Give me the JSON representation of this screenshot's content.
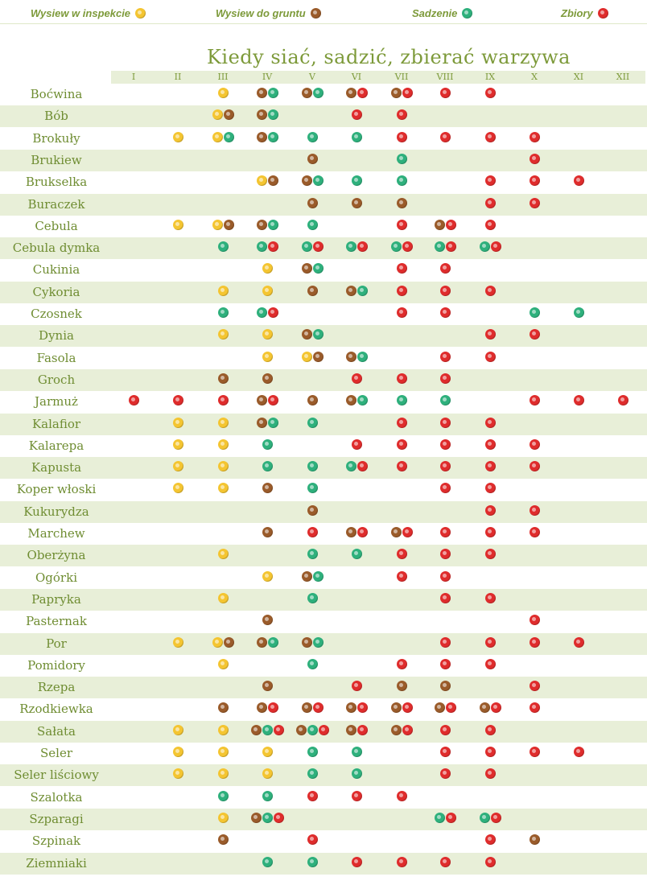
{
  "legend": {
    "indoor_sowing": "Wysiew w inspekcie",
    "direct_sowing": "Wysiew do gruntu",
    "planting": "Sadzenie",
    "harvest": "Zbiory"
  },
  "colors": {
    "indoor_sowing": "#f4c531",
    "direct_sowing": "#9a5b2a",
    "planting": "#2eb07c",
    "harvest": "#df2c2c",
    "text": "#7d9a3a",
    "row_shade": "#e8efd8"
  },
  "chart_data": {
    "type": "table",
    "title": "Kiedy siać, sadzić, zbierać warzywa",
    "months": [
      "I",
      "II",
      "III",
      "IV",
      "V",
      "VI",
      "VII",
      "VIII",
      "IX",
      "X",
      "XI",
      "XII"
    ],
    "code_key": {
      "s": "Wysiew w inspekcie",
      "d": "Wysiew do gruntu",
      "p": "Sadzenie",
      "h": "Zbiory"
    },
    "rows": [
      {
        "name": "Boćwina",
        "cells": [
          "",
          "",
          "s",
          "dp",
          "dp",
          "dh",
          "dh",
          "h",
          "h",
          "",
          "",
          ""
        ]
      },
      {
        "name": "Bób",
        "cells": [
          "",
          "",
          "sd",
          "dp",
          "",
          "h",
          "h",
          "",
          "",
          "",
          "",
          ""
        ]
      },
      {
        "name": "Brokuły",
        "cells": [
          "",
          "s",
          "sp",
          "dp",
          "p",
          "p",
          "h",
          "h",
          "h",
          "h",
          "",
          ""
        ]
      },
      {
        "name": "Brukiew",
        "cells": [
          "",
          "",
          "",
          "",
          "d",
          "",
          "p",
          "",
          "",
          "h",
          "",
          ""
        ]
      },
      {
        "name": "Brukselka",
        "cells": [
          "",
          "",
          "",
          "sd",
          "dp",
          "p",
          "p",
          "",
          "h",
          "h",
          "h",
          ""
        ]
      },
      {
        "name": "Buraczek",
        "cells": [
          "",
          "",
          "",
          "",
          "d",
          "d",
          "d",
          "",
          "h",
          "h",
          "",
          ""
        ]
      },
      {
        "name": "Cebula",
        "cells": [
          "",
          "s",
          "sd",
          "dp",
          "p",
          "",
          "h",
          "dh",
          "h",
          "",
          "",
          ""
        ]
      },
      {
        "name": "Cebula dymka",
        "cells": [
          "",
          "",
          "p",
          "ph",
          "ph",
          "ph",
          "ph",
          "ph",
          "ph",
          "",
          "",
          ""
        ]
      },
      {
        "name": "Cukinia",
        "cells": [
          "",
          "",
          "",
          "s",
          "dp",
          "",
          "h",
          "h",
          "",
          "",
          "",
          ""
        ]
      },
      {
        "name": "Cykoria",
        "cells": [
          "",
          "",
          "s",
          "s",
          "d",
          "dp",
          "h",
          "h",
          "h",
          "",
          "",
          ""
        ]
      },
      {
        "name": "Czosnek",
        "cells": [
          "",
          "",
          "p",
          "ph",
          "",
          "",
          "h",
          "h",
          "",
          "p",
          "p",
          ""
        ]
      },
      {
        "name": "Dynia",
        "cells": [
          "",
          "",
          "s",
          "s",
          "dp",
          "",
          "",
          "",
          "h",
          "h",
          "",
          ""
        ]
      },
      {
        "name": "Fasola",
        "cells": [
          "",
          "",
          "",
          "s",
          "sd",
          "dp",
          "",
          "h",
          "h",
          "",
          "",
          ""
        ]
      },
      {
        "name": "Groch",
        "cells": [
          "",
          "",
          "d",
          "d",
          "",
          "h",
          "h",
          "h",
          "",
          "",
          "",
          ""
        ]
      },
      {
        "name": "Jarmuż",
        "cells": [
          "h",
          "h",
          "h",
          "dh",
          "d",
          "dp",
          "p",
          "p",
          "",
          "h",
          "h",
          "h"
        ]
      },
      {
        "name": "Kalafior",
        "cells": [
          "",
          "s",
          "s",
          "dp",
          "p",
          "",
          "h",
          "h",
          "h",
          "",
          "",
          ""
        ]
      },
      {
        "name": "Kalarepa",
        "cells": [
          "",
          "s",
          "s",
          "p",
          "",
          "h",
          "h",
          "h",
          "h",
          "h",
          "",
          ""
        ]
      },
      {
        "name": "Kapusta",
        "cells": [
          "",
          "s",
          "s",
          "p",
          "p",
          "ph",
          "h",
          "h",
          "h",
          "h",
          "",
          ""
        ]
      },
      {
        "name": "Koper włoski",
        "cells": [
          "",
          "s",
          "s",
          "d",
          "p",
          "",
          "",
          "h",
          "h",
          "",
          "",
          ""
        ]
      },
      {
        "name": "Kukurydza",
        "cells": [
          "",
          "",
          "",
          "",
          "d",
          "",
          "",
          "",
          "h",
          "h",
          "",
          ""
        ]
      },
      {
        "name": "Marchew",
        "cells": [
          "",
          "",
          "",
          "d",
          "h",
          "dh",
          "dh",
          "h",
          "h",
          "h",
          "",
          ""
        ]
      },
      {
        "name": "Oberżyna",
        "cells": [
          "",
          "",
          "s",
          "",
          "p",
          "p",
          "h",
          "h",
          "h",
          "",
          "",
          ""
        ]
      },
      {
        "name": "Ogórki",
        "cells": [
          "",
          "",
          "",
          "s",
          "dp",
          "",
          "h",
          "h",
          "",
          "",
          "",
          ""
        ]
      },
      {
        "name": "Papryka",
        "cells": [
          "",
          "",
          "s",
          "",
          "p",
          "",
          "",
          "h",
          "h",
          "",
          "",
          ""
        ]
      },
      {
        "name": "Pasternak",
        "cells": [
          "",
          "",
          "",
          "d",
          "",
          "",
          "",
          "",
          "",
          "h",
          "",
          ""
        ]
      },
      {
        "name": "Por",
        "cells": [
          "",
          "s",
          "sd",
          "dp",
          "dp",
          "",
          "",
          "h",
          "h",
          "h",
          "h",
          ""
        ]
      },
      {
        "name": "Pomidory",
        "cells": [
          "",
          "",
          "s",
          "",
          "p",
          "",
          "h",
          "h",
          "h",
          "",
          "",
          ""
        ]
      },
      {
        "name": "Rzepa",
        "cells": [
          "",
          "",
          "",
          "d",
          "",
          "h",
          "d",
          "d",
          "",
          "h",
          "",
          ""
        ]
      },
      {
        "name": "Rzodkiewka",
        "cells": [
          "",
          "",
          "d",
          "dh",
          "dh",
          "dh",
          "dh",
          "dh",
          "dh",
          "h",
          "",
          ""
        ]
      },
      {
        "name": "Sałata",
        "cells": [
          "",
          "s",
          "s",
          "dph",
          "dph",
          "dh",
          "dh",
          "h",
          "h",
          "",
          "",
          ""
        ]
      },
      {
        "name": "Seler",
        "cells": [
          "",
          "s",
          "s",
          "s",
          "p",
          "p",
          "",
          "h",
          "h",
          "h",
          "h",
          ""
        ]
      },
      {
        "name": "Seler liściowy",
        "cells": [
          "",
          "s",
          "s",
          "s",
          "p",
          "p",
          "",
          "h",
          "h",
          "",
          "",
          ""
        ]
      },
      {
        "name": "Szalotka",
        "cells": [
          "",
          "",
          "p",
          "p",
          "h",
          "h",
          "h",
          "",
          "",
          "",
          "",
          ""
        ]
      },
      {
        "name": "Szparagi",
        "cells": [
          "",
          "",
          "s",
          "dph",
          "",
          "",
          "",
          "ph",
          "ph",
          "",
          "",
          ""
        ]
      },
      {
        "name": "Szpinak",
        "cells": [
          "",
          "",
          "d",
          "",
          "h",
          "",
          "",
          "",
          "h",
          "d",
          "",
          ""
        ]
      },
      {
        "name": "Ziemniaki",
        "cells": [
          "",
          "",
          "",
          "p",
          "p",
          "h",
          "h",
          "h",
          "h",
          "",
          "",
          ""
        ]
      }
    ]
  }
}
